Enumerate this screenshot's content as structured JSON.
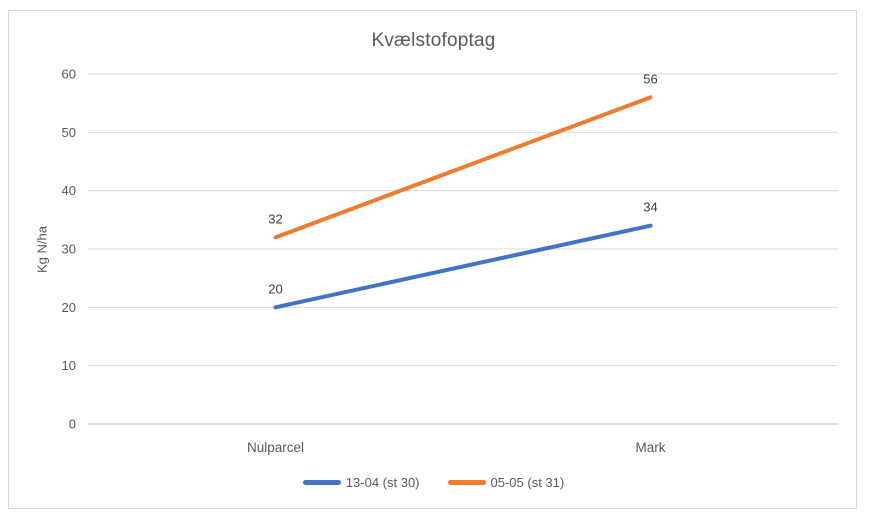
{
  "chart_data": {
    "type": "line",
    "title": "Kvælstofoptag",
    "categories": [
      "Nulparcel",
      "Mark"
    ],
    "series": [
      {
        "name": "13-04 (st 30)",
        "values": [
          20,
          34
        ],
        "color": "#4472C4"
      },
      {
        "name": "05-05 (st 31)",
        "values": [
          32,
          56
        ],
        "color": "#ED7D31"
      }
    ],
    "xlabel": "",
    "ylabel": "Kg N/ha",
    "ylim": [
      0,
      60
    ],
    "yticks": [
      0,
      10,
      20,
      30,
      40,
      50,
      60
    ],
    "grid": true,
    "data_labels": true,
    "legend_position": "bottom"
  },
  "colors": {
    "gridline": "#D9D9D9",
    "axis_line": "#BFBFBF",
    "frame_border": "#D9D9D9",
    "axis_text": "#595959",
    "title_text": "#595959",
    "data_label_text": "#404040",
    "background": "#FFFFFF"
  }
}
